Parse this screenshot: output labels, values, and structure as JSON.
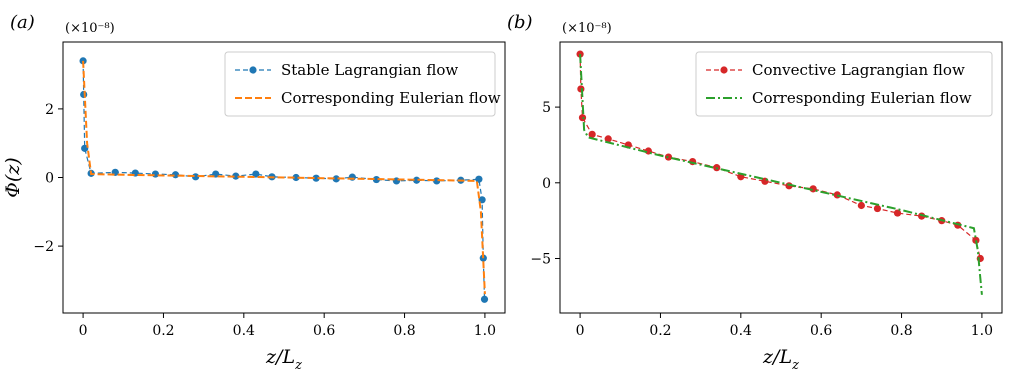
{
  "chart_data": [
    {
      "type": "line",
      "panel_label": "(a)",
      "multiplier": "(×10⁻⁸)",
      "xlabel": "z/L",
      "xlabel_sub": "z",
      "ylabel": "Φ(z)",
      "xlim": [
        -0.05,
        1.05
      ],
      "ylim": [
        -3.95,
        3.95
      ],
      "xticks": [
        0,
        0.2,
        0.4,
        0.6,
        0.8,
        1.0
      ],
      "xtick_labels": [
        "0",
        "0.2",
        "0.4",
        "0.6",
        "0.8",
        "1.0"
      ],
      "yticks": [
        -2,
        0,
        2
      ],
      "ytick_labels": [
        "−2",
        "0",
        "2"
      ],
      "legend_position": "top-right",
      "series": [
        {
          "name": "Stable Lagrangian flow",
          "color": "#1f77b4",
          "style": "dashed-markers",
          "x": [
            0.0,
            0.0015,
            0.004,
            0.02,
            0.08,
            0.13,
            0.18,
            0.23,
            0.28,
            0.33,
            0.38,
            0.43,
            0.47,
            0.53,
            0.58,
            0.63,
            0.67,
            0.73,
            0.78,
            0.83,
            0.88,
            0.94,
            0.985,
            0.993,
            0.996,
            0.999
          ],
          "y": [
            3.4,
            2.42,
            0.85,
            0.12,
            0.15,
            0.13,
            0.1,
            0.08,
            0.02,
            0.1,
            0.04,
            0.1,
            0.02,
            0.0,
            -0.02,
            -0.04,
            0.01,
            -0.06,
            -0.1,
            -0.08,
            -0.1,
            -0.08,
            -0.05,
            -0.65,
            -2.35,
            -3.55
          ]
        },
        {
          "name": "Corresponding Eulerian flow",
          "color": "#ff7f0e",
          "style": "dashed",
          "x": [
            0.0,
            0.01,
            0.02,
            0.1,
            0.2,
            0.3,
            0.4,
            0.5,
            0.6,
            0.7,
            0.8,
            0.9,
            0.98,
            0.99,
            1.0
          ],
          "y": [
            3.4,
            1.0,
            0.1,
            0.08,
            0.06,
            0.04,
            0.02,
            0.0,
            -0.02,
            -0.04,
            -0.06,
            -0.08,
            -0.1,
            -1.0,
            -3.4
          ]
        }
      ]
    },
    {
      "type": "line",
      "panel_label": "(b)",
      "multiplier": "(×10⁻⁸)",
      "xlabel": "z/L",
      "xlabel_sub": "z",
      "ylabel": "",
      "xlim": [
        -0.05,
        1.05
      ],
      "ylim": [
        -8.6,
        9.3
      ],
      "xticks": [
        0,
        0.2,
        0.4,
        0.6,
        0.8,
        1.0
      ],
      "xtick_labels": [
        "0",
        "0.2",
        "0.4",
        "0.6",
        "0.8",
        "1.0"
      ],
      "yticks": [
        -5,
        0,
        5
      ],
      "ytick_labels": [
        "−5",
        "0",
        "5"
      ],
      "legend_position": "top-right",
      "series": [
        {
          "name": "Convective Lagrangian flow",
          "color": "#d62728",
          "style": "dashed-markers",
          "x": [
            0.0,
            0.002,
            0.006,
            0.03,
            0.07,
            0.12,
            0.17,
            0.22,
            0.28,
            0.34,
            0.4,
            0.46,
            0.52,
            0.58,
            0.64,
            0.7,
            0.74,
            0.79,
            0.85,
            0.9,
            0.94,
            0.985,
            0.996
          ],
          "y": [
            8.5,
            6.2,
            4.3,
            3.2,
            2.9,
            2.5,
            2.1,
            1.7,
            1.4,
            1.0,
            0.4,
            0.1,
            -0.2,
            -0.4,
            -0.8,
            -1.5,
            -1.7,
            -2.0,
            -2.2,
            -2.5,
            -2.8,
            -3.8,
            -5.0
          ]
        },
        {
          "name": "Corresponding Eulerian flow",
          "color": "#2ca02c",
          "style": "dashdot",
          "x": [
            0.0,
            0.005,
            0.01,
            0.02,
            0.2,
            0.4,
            0.6,
            0.8,
            0.98,
            0.99,
            0.995,
            1.0
          ],
          "y": [
            8.5,
            6.0,
            3.5,
            3.0,
            1.8,
            0.6,
            -0.6,
            -1.8,
            -3.0,
            -4.5,
            -6.0,
            -7.4
          ]
        }
      ]
    }
  ]
}
